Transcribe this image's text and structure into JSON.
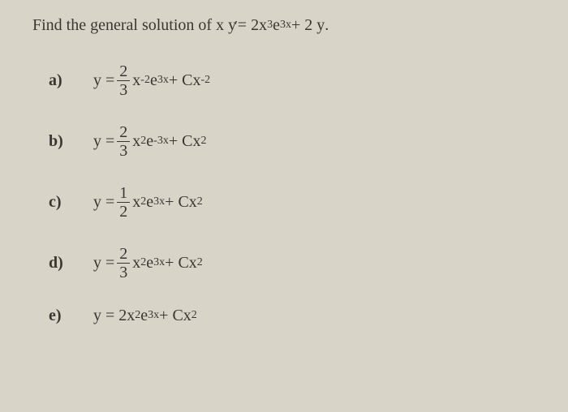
{
  "question": {
    "prefix": "Find the general solution of ",
    "lhs": "x y",
    "prime": "′",
    "eq": " = 2x",
    "exp1": "3",
    "mid1": " e",
    "exp2": "3x",
    "mid2": " + 2 y ",
    "period": "."
  },
  "options": [
    {
      "label": "a)",
      "parts": {
        "pre": "y = ",
        "frac_num": "2",
        "frac_den": "3",
        "after_frac": "x",
        "sup1": "-2",
        "mid1": " e",
        "sup2": "3x",
        "mid2": " + Cx",
        "sup3": "-2"
      }
    },
    {
      "label": "b)",
      "parts": {
        "pre": "y = ",
        "frac_num": "2",
        "frac_den": "3",
        "after_frac": "x",
        "sup1": "2",
        "mid1": " e",
        "sup2": "-3x",
        "mid2": " + Cx",
        "sup3": "2"
      }
    },
    {
      "label": "c)",
      "parts": {
        "pre": "y = ",
        "frac_num": "1",
        "frac_den": "2",
        "after_frac": "x",
        "sup1": "2",
        "mid1": " e",
        "sup2": "3x",
        "mid2": " + Cx",
        "sup3": "2"
      }
    },
    {
      "label": "d)",
      "parts": {
        "pre": "y = ",
        "frac_num": "2",
        "frac_den": "3",
        "after_frac": "x",
        "sup1": "2",
        "mid1": " e",
        "sup2": "3x",
        "mid2": " + Cx",
        "sup3": "2"
      }
    },
    {
      "label": "e)",
      "parts": {
        "pre": "y = 2x",
        "frac_num": "",
        "frac_den": "",
        "after_frac": "",
        "sup1": "2",
        "mid1": " e",
        "sup2": "3x",
        "mid2": " + Cx",
        "sup3": "2"
      }
    }
  ],
  "style": {
    "background": "#d9d4c8",
    "text_color": "#3a3632",
    "font_family": "Times New Roman",
    "question_fontsize": 20,
    "option_fontsize": 20
  }
}
